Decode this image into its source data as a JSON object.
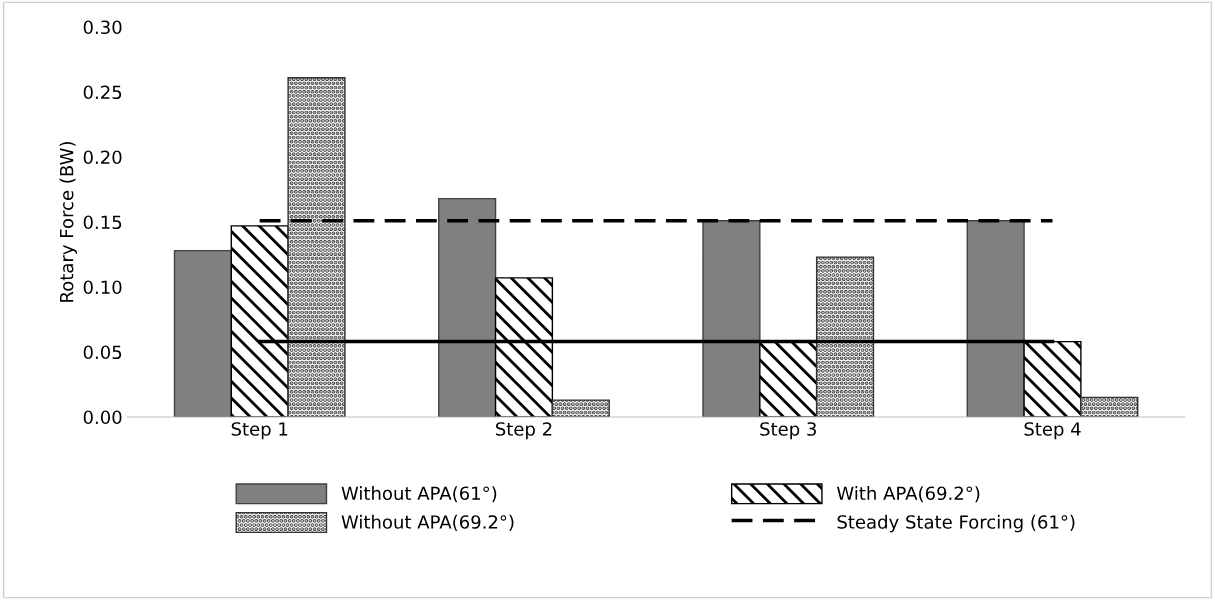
{
  "chart_data": {
    "type": "bar",
    "ylabel": "Rotary Force (BW)",
    "categories": [
      "Step 1",
      "Step 2",
      "Step 3",
      "Step 4"
    ],
    "ylim": [
      0,
      0.3
    ],
    "yticks": [
      {
        "value": 0,
        "label": "0.00"
      },
      {
        "value": 0.05,
        "label": "0.05"
      },
      {
        "value": 0.1,
        "label": "0.10"
      },
      {
        "value": 0.15,
        "label": "0.15"
      },
      {
        "value": 0.2,
        "label": "0.20"
      },
      {
        "value": 0.25,
        "label": "0.25"
      },
      {
        "value": 0.3,
        "label": "0.30"
      }
    ],
    "grid": false,
    "legend": "bottom",
    "series": [
      {
        "name": "Without APA(61°)",
        "color": "#808080",
        "values": [
          0.128,
          0.168,
          0.151,
          0.151
        ]
      },
      {
        "name": "With APA(69.2°)",
        "color": "#000000",
        "values": [
          0.147,
          0.107,
          0.058,
          0.058
        ]
      },
      {
        "name": "Without APA(69.2°)",
        "color": "#333333",
        "values": [
          0.261,
          0.013,
          0.123,
          0.015
        ]
      },
      {
        "name": "Steady State Forcing (61°)",
        "type": "line",
        "color": "#000000",
        "line_style": "dashed",
        "values": [
          0.151,
          0.151,
          0.151,
          0.151
        ]
      },
      {
        "type": "line",
        "color": "#000000",
        "line_style": "solid",
        "values": [
          0.058,
          0.058,
          0.058,
          0.058
        ]
      }
    ]
  }
}
